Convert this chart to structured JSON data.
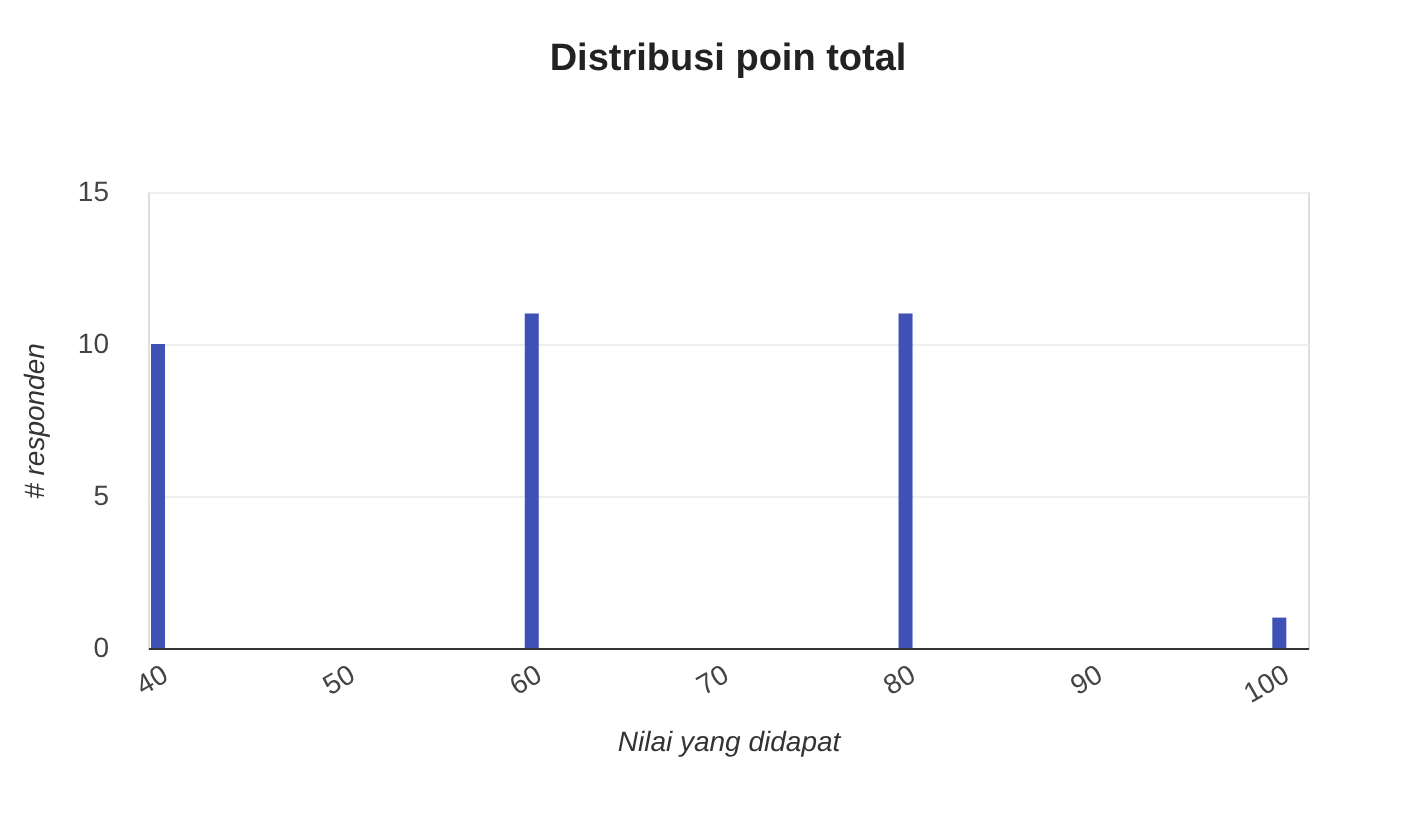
{
  "chart_data": {
    "type": "bar",
    "title": "Distribusi poin total",
    "xlabel": "Nilai yang didapat",
    "ylabel": "# responden",
    "x": [
      40,
      60,
      80,
      100
    ],
    "series": [
      {
        "color": "#3f51b5",
        "values": [
          10,
          11,
          11,
          1
        ]
      }
    ],
    "xlim": [
      40,
      101
    ],
    "xticks": [
      40,
      50,
      60,
      70,
      80,
      90,
      100
    ],
    "ylim": [
      0,
      15
    ],
    "yticks": [
      0,
      5,
      10,
      15
    ],
    "grid": "y",
    "legend": false
  }
}
